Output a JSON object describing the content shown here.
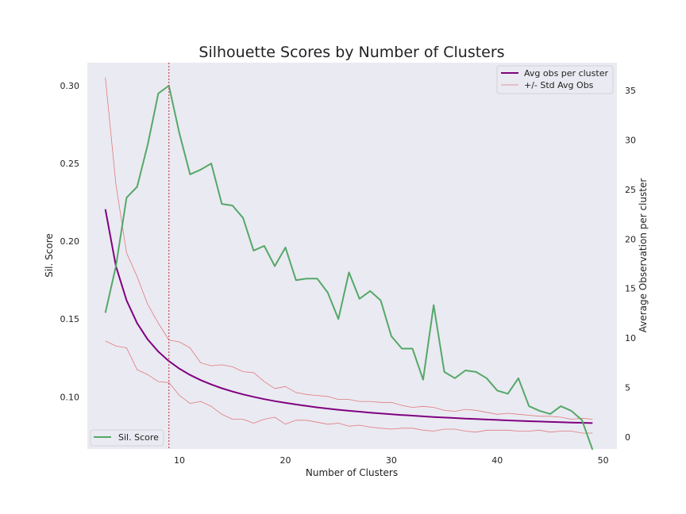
{
  "chart_data": {
    "type": "line",
    "title": "Silhouette Scores by Number of Clusters",
    "xlabel": "Number of Clusters",
    "ylabel_left": "Sil. Score",
    "ylabel_right": "Average Observation per cluster",
    "xlim": [
      1.3,
      51.3
    ],
    "ylim_left": [
      0.0665,
      0.3148
    ],
    "ylim_right": [
      -1.2,
      37.8
    ],
    "x_ticks": [
      10,
      20,
      30,
      40,
      50
    ],
    "y_left_ticks": [
      0.1,
      0.15,
      0.2,
      0.25,
      0.3
    ],
    "y_left_tick_labels": [
      "0.10",
      "0.15",
      "0.20",
      "0.25",
      "0.30"
    ],
    "y_right_ticks": [
      0,
      5,
      10,
      15,
      20,
      25,
      30,
      35
    ],
    "grid": false,
    "background": "#eaeaf2",
    "vline": {
      "x": 9,
      "color": "#c44e52",
      "style": "dotted"
    },
    "x": [
      3,
      4,
      5,
      6,
      7,
      8,
      9,
      10,
      11,
      12,
      13,
      14,
      15,
      16,
      17,
      18,
      19,
      20,
      21,
      22,
      23,
      24,
      25,
      26,
      27,
      28,
      29,
      30,
      31,
      32,
      33,
      34,
      35,
      36,
      37,
      38,
      39,
      40,
      41,
      42,
      43,
      44,
      45,
      46,
      47,
      48,
      49
    ],
    "sil_score": {
      "name": "Sil. Score",
      "color": "#55a868",
      "axis": "left",
      "values": [
        0.154,
        0.184,
        0.228,
        0.235,
        0.262,
        0.295,
        0.3,
        0.269,
        0.243,
        0.246,
        0.25,
        0.224,
        0.223,
        0.215,
        0.194,
        0.197,
        0.184,
        0.196,
        0.175,
        0.176,
        0.176,
        0.167,
        0.15,
        0.18,
        0.163,
        0.168,
        0.162,
        0.139,
        0.131,
        0.131,
        0.111,
        0.159,
        0.116,
        0.112,
        0.117,
        0.116,
        0.112,
        0.104,
        0.102,
        0.112,
        0.094,
        0.091,
        0.089,
        0.094,
        0.091,
        0.085,
        0.066
      ]
    },
    "avg_obs": {
      "name": "Avg obs per cluster",
      "color": "#800080",
      "axis": "right",
      "values": [
        23.0,
        17.25,
        13.8,
        11.5,
        9.86,
        8.63,
        7.67,
        6.9,
        6.27,
        5.75,
        5.31,
        4.93,
        4.6,
        4.31,
        4.06,
        3.83,
        3.63,
        3.45,
        3.29,
        3.14,
        3.0,
        2.88,
        2.76,
        2.65,
        2.56,
        2.46,
        2.38,
        2.3,
        2.23,
        2.16,
        2.09,
        2.03,
        1.97,
        1.92,
        1.86,
        1.82,
        1.77,
        1.73,
        1.68,
        1.64,
        1.6,
        1.57,
        1.53,
        1.5,
        1.47,
        1.44,
        1.41
      ]
    },
    "std_upper": {
      "name": "+/- Std Avg Obs",
      "color": "#e07b7e",
      "axis": "right",
      "values": [
        36.3,
        25.5,
        18.6,
        16.2,
        13.4,
        11.5,
        9.8,
        9.6,
        9.0,
        7.5,
        7.2,
        7.3,
        7.1,
        6.6,
        6.5,
        5.6,
        4.9,
        5.1,
        4.5,
        4.3,
        4.2,
        4.1,
        3.8,
        3.8,
        3.6,
        3.6,
        3.5,
        3.5,
        3.2,
        3.0,
        3.1,
        3.0,
        2.7,
        2.6,
        2.8,
        2.7,
        2.5,
        2.3,
        2.4,
        2.3,
        2.2,
        2.1,
        2.1,
        2.0,
        1.8,
        1.9,
        1.8
      ]
    },
    "std_lower": {
      "color": "#e07b7e",
      "axis": "right",
      "values": [
        9.7,
        9.2,
        9.0,
        6.8,
        6.3,
        5.6,
        5.5,
        4.2,
        3.4,
        3.6,
        3.1,
        2.3,
        1.8,
        1.8,
        1.4,
        1.8,
        2.0,
        1.3,
        1.7,
        1.7,
        1.5,
        1.3,
        1.4,
        1.1,
        1.2,
        1.0,
        0.9,
        0.8,
        0.9,
        0.9,
        0.7,
        0.6,
        0.8,
        0.8,
        0.6,
        0.5,
        0.7,
        0.7,
        0.7,
        0.6,
        0.6,
        0.7,
        0.5,
        0.6,
        0.6,
        0.4,
        0.4
      ]
    },
    "legend_right": {
      "placement": "top-right",
      "entries": [
        "Avg obs per cluster",
        "+/- Std Avg Obs"
      ]
    },
    "legend_left": {
      "placement": "bottom-left",
      "entries": [
        "Sil. Score"
      ]
    }
  }
}
